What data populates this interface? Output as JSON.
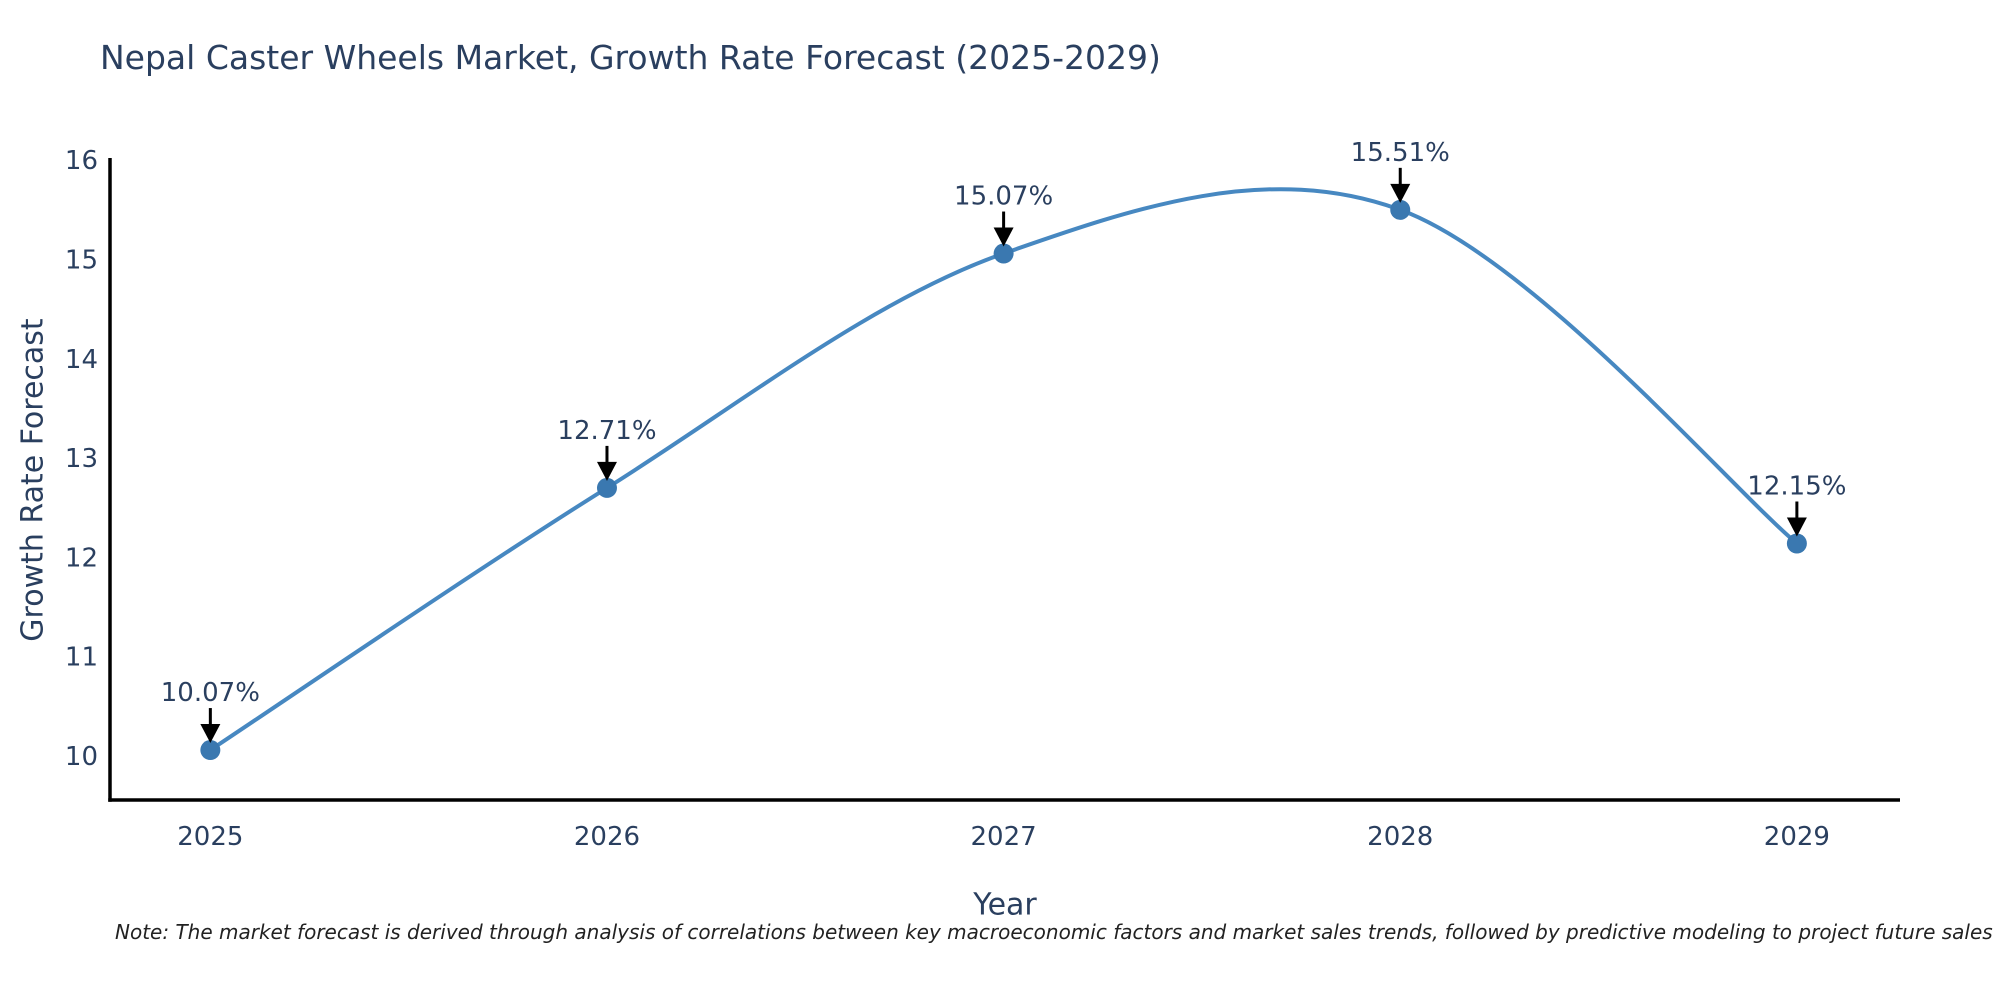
{
  "title": "Nepal Caster Wheels Market, Growth Rate Forecast (2025-2029)",
  "note": "Note: The market forecast is derived through analysis of correlations between key macroeconomic factors and market sales trends, followed by predictive modeling to project future sales",
  "chart_data": {
    "type": "line",
    "line_shape": "spline",
    "title": "Nepal Caster Wheels Market, Growth Rate Forecast (2025-2029)",
    "xlabel": "Year",
    "ylabel": "Growth Rate Forecast",
    "x": [
      2025,
      2026,
      2027,
      2028,
      2029
    ],
    "y": [
      10.07,
      12.71,
      15.07,
      15.51,
      12.15
    ],
    "point_labels": [
      "10.07%",
      "12.71%",
      "15.07%",
      "15.51%",
      "12.15%"
    ],
    "xticks": [
      "2025",
      "2026",
      "2027",
      "2028",
      "2029"
    ],
    "yticks": [
      10,
      11,
      12,
      13,
      14,
      15,
      16
    ],
    "xlim": [
      2024.747,
      2029.26
    ],
    "ylim": [
      9.567,
      16.012
    ],
    "grid": false,
    "legend": "none",
    "colors": {
      "line": "#4788c1",
      "marker": "#3a78b0",
      "axis_line": "#000000",
      "tick_text": "#2a3f5f",
      "annotation_text": "#2a3f5f",
      "annotation_arrow": "#000000",
      "background": "#ffffff"
    }
  }
}
